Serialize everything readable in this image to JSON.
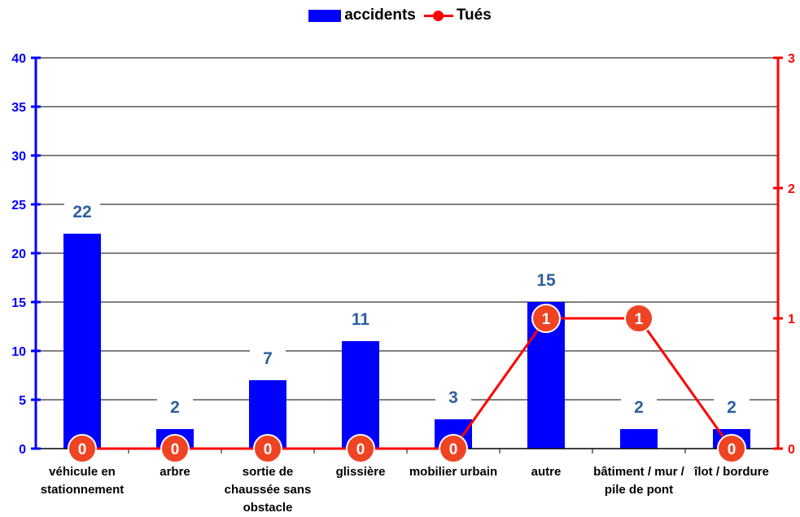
{
  "legend": {
    "bar_label": "accidents",
    "line_label": "Tués"
  },
  "chart_data": {
    "type": "bar",
    "categories": [
      "véhicule en stationnement",
      "arbre",
      "sortie de chaussée sans obstacle",
      "glissière",
      "mobilier urbain",
      "autre",
      "bâtiment / mur / pile de pont",
      "îlot / bordure"
    ],
    "category_lines": [
      [
        "véhicule en",
        "stationnement"
      ],
      [
        "arbre"
      ],
      [
        "sortie de",
        "chaussée sans",
        "obstacle"
      ],
      [
        "glissière"
      ],
      [
        "mobilier urbain"
      ],
      [
        "autre"
      ],
      [
        "bâtiment / mur /",
        "pile de pont"
      ],
      [
        "îlot / bordure"
      ]
    ],
    "series": [
      {
        "name": "accidents",
        "type": "bar",
        "axis": "left",
        "color": "#0000ff",
        "values": [
          22,
          2,
          7,
          11,
          3,
          15,
          2,
          2
        ]
      },
      {
        "name": "Tués",
        "type": "line",
        "axis": "right",
        "color": "#ff0000",
        "values": [
          0,
          0,
          0,
          0,
          0,
          1,
          1,
          0
        ]
      }
    ],
    "y_left": {
      "min": 0,
      "max": 40,
      "ticks": [
        0,
        5,
        10,
        15,
        20,
        25,
        30,
        35,
        40
      ],
      "color": "#0000ff"
    },
    "y_right": {
      "min": 0,
      "max": 3,
      "ticks": [
        0,
        1,
        2,
        3
      ],
      "color": "#ff0000"
    },
    "bar_label_color": "#2e5f9e",
    "marker_color": "#ef4423",
    "grid": true,
    "legend_position": "top-center"
  }
}
